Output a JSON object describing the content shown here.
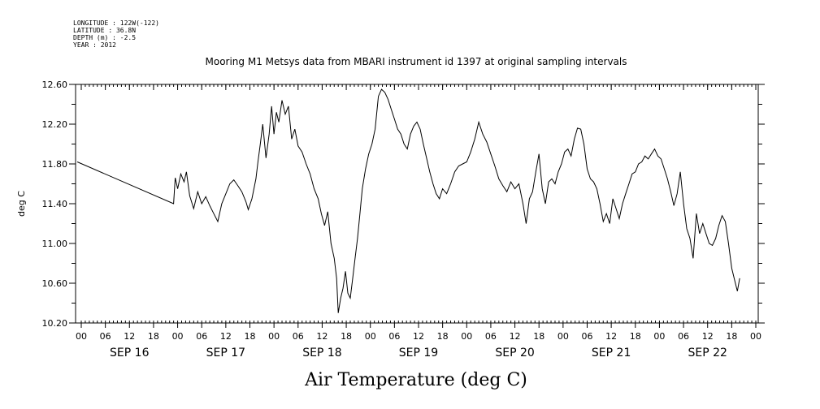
{
  "meta": {
    "longitude": "LONGITUDE : 122W(-122)",
    "latitude": "LATITUDE : 36.8N",
    "depth": "DEPTH (m) : -2.5",
    "year": "YEAR : 2012"
  },
  "chart_data": {
    "type": "line",
    "title": "Mooring M1 Metsys data from MBARI instrument id 1397 at original sampling intervals",
    "xlabel": "Air Temperature (deg C)",
    "ylabel": "deg C",
    "ylim": [
      10.2,
      12.6
    ],
    "yticks": [
      "12.60",
      "12.20",
      "11.80",
      "11.40",
      "11.00",
      "10.60",
      "10.20"
    ],
    "x_unit": "hours since 2012-09-16 00:00",
    "xlim": [
      0,
      168
    ],
    "hour_ticks": [
      "00",
      "06",
      "12",
      "18",
      "00",
      "06",
      "12",
      "18",
      "00",
      "06",
      "12",
      "18",
      "00",
      "06",
      "12",
      "18",
      "00",
      "06",
      "12",
      "18",
      "00",
      "06",
      "12",
      "18",
      "00",
      "06",
      "12",
      "18",
      "00"
    ],
    "day_labels": [
      "SEP 16",
      "SEP 17",
      "SEP 18",
      "SEP 19",
      "SEP 20",
      "SEP 21",
      "SEP 22"
    ],
    "grid": false,
    "series": [
      {
        "values": [
          [
            -1,
            11.82
          ],
          [
            23,
            11.4
          ],
          [
            23.4,
            11.66
          ],
          [
            24,
            11.55
          ],
          [
            24.8,
            11.7
          ],
          [
            25.6,
            11.62
          ],
          [
            26.2,
            11.72
          ],
          [
            27,
            11.48
          ],
          [
            28,
            11.35
          ],
          [
            29,
            11.52
          ],
          [
            30,
            11.4
          ],
          [
            31,
            11.47
          ],
          [
            32,
            11.38
          ],
          [
            33,
            11.3
          ],
          [
            34,
            11.22
          ],
          [
            35,
            11.4
          ],
          [
            36,
            11.5
          ],
          [
            37,
            11.6
          ],
          [
            38,
            11.64
          ],
          [
            39,
            11.58
          ],
          [
            40,
            11.52
          ],
          [
            41,
            11.42
          ],
          [
            41.6,
            11.34
          ],
          [
            42.5,
            11.45
          ],
          [
            43.5,
            11.65
          ],
          [
            44,
            11.82
          ],
          [
            44.6,
            12.0
          ],
          [
            45.2,
            12.2
          ],
          [
            46,
            11.86
          ],
          [
            46.8,
            12.1
          ],
          [
            47.4,
            12.38
          ],
          [
            48,
            12.1
          ],
          [
            48.6,
            12.32
          ],
          [
            49.2,
            12.22
          ],
          [
            50,
            12.44
          ],
          [
            50.8,
            12.3
          ],
          [
            51.6,
            12.38
          ],
          [
            52.4,
            12.05
          ],
          [
            53.2,
            12.15
          ],
          [
            54,
            11.98
          ],
          [
            55,
            11.92
          ],
          [
            56,
            11.8
          ],
          [
            57,
            11.7
          ],
          [
            58,
            11.55
          ],
          [
            59,
            11.45
          ],
          [
            59.8,
            11.3
          ],
          [
            60.6,
            11.18
          ],
          [
            61.4,
            11.32
          ],
          [
            62.2,
            11.0
          ],
          [
            63,
            10.85
          ],
          [
            63.6,
            10.65
          ],
          [
            64,
            10.3
          ],
          [
            64.6,
            10.45
          ],
          [
            65.2,
            10.55
          ],
          [
            65.8,
            10.72
          ],
          [
            66.4,
            10.5
          ],
          [
            67,
            10.45
          ],
          [
            67.6,
            10.65
          ],
          [
            68.2,
            10.85
          ],
          [
            68.8,
            11.05
          ],
          [
            69.4,
            11.3
          ],
          [
            70,
            11.55
          ],
          [
            70.8,
            11.75
          ],
          [
            71.6,
            11.9
          ],
          [
            72.4,
            12.0
          ],
          [
            73.2,
            12.15
          ],
          [
            74,
            12.48
          ],
          [
            74.8,
            12.55
          ],
          [
            75.6,
            12.52
          ],
          [
            76.4,
            12.45
          ],
          [
            77.2,
            12.35
          ],
          [
            78,
            12.25
          ],
          [
            78.8,
            12.15
          ],
          [
            79.6,
            12.1
          ],
          [
            80.4,
            12.0
          ],
          [
            81.2,
            11.95
          ],
          [
            82,
            12.1
          ],
          [
            82.8,
            12.18
          ],
          [
            83.6,
            12.22
          ],
          [
            84.4,
            12.15
          ],
          [
            85.2,
            12.0
          ],
          [
            86,
            11.86
          ],
          [
            86.8,
            11.72
          ],
          [
            87.6,
            11.6
          ],
          [
            88.4,
            11.5
          ],
          [
            89.2,
            11.45
          ],
          [
            90,
            11.55
          ],
          [
            91,
            11.5
          ],
          [
            92,
            11.6
          ],
          [
            93,
            11.72
          ],
          [
            94,
            11.78
          ],
          [
            95,
            11.8
          ],
          [
            96,
            11.82
          ],
          [
            97,
            11.92
          ],
          [
            98,
            12.05
          ],
          [
            99,
            12.22
          ],
          [
            100,
            12.1
          ],
          [
            101,
            12.02
          ],
          [
            102,
            11.9
          ],
          [
            103,
            11.78
          ],
          [
            104,
            11.65
          ],
          [
            105,
            11.58
          ],
          [
            106,
            11.52
          ],
          [
            107,
            11.62
          ],
          [
            108,
            11.55
          ],
          [
            109,
            11.6
          ],
          [
            110,
            11.4
          ],
          [
            110.8,
            11.2
          ],
          [
            111.6,
            11.45
          ],
          [
            112.4,
            11.52
          ],
          [
            113.2,
            11.72
          ],
          [
            114,
            11.9
          ],
          [
            114.8,
            11.55
          ],
          [
            115.6,
            11.4
          ],
          [
            116.4,
            11.62
          ],
          [
            117.2,
            11.65
          ],
          [
            118,
            11.6
          ],
          [
            118.8,
            11.72
          ],
          [
            119.6,
            11.8
          ],
          [
            120.4,
            11.92
          ],
          [
            121.2,
            11.95
          ],
          [
            122,
            11.88
          ],
          [
            122.8,
            12.05
          ],
          [
            123.6,
            12.16
          ],
          [
            124.4,
            12.15
          ],
          [
            125.2,
            12.0
          ],
          [
            126,
            11.75
          ],
          [
            126.8,
            11.65
          ],
          [
            127.6,
            11.62
          ],
          [
            128.4,
            11.55
          ],
          [
            129.2,
            11.4
          ],
          [
            130,
            11.22
          ],
          [
            130.8,
            11.3
          ],
          [
            131.6,
            11.2
          ],
          [
            132.4,
            11.45
          ],
          [
            133.2,
            11.35
          ],
          [
            134,
            11.25
          ],
          [
            134.8,
            11.4
          ],
          [
            135.6,
            11.5
          ],
          [
            136.4,
            11.6
          ],
          [
            137.2,
            11.7
          ],
          [
            138,
            11.72
          ],
          [
            138.8,
            11.8
          ],
          [
            139.6,
            11.82
          ],
          [
            140.4,
            11.88
          ],
          [
            141.2,
            11.85
          ],
          [
            142,
            11.9
          ],
          [
            142.8,
            11.95
          ],
          [
            143.6,
            11.88
          ],
          [
            144.4,
            11.85
          ],
          [
            145.2,
            11.75
          ],
          [
            146,
            11.65
          ],
          [
            146.8,
            11.52
          ],
          [
            147.6,
            11.38
          ],
          [
            148.4,
            11.5
          ],
          [
            149.2,
            11.72
          ],
          [
            150,
            11.4
          ],
          [
            150.8,
            11.15
          ],
          [
            151.6,
            11.05
          ],
          [
            152.4,
            10.85
          ],
          [
            153.2,
            11.3
          ],
          [
            154,
            11.1
          ],
          [
            154.8,
            11.2
          ],
          [
            155.6,
            11.1
          ],
          [
            156.4,
            11.0
          ],
          [
            157.2,
            10.98
          ],
          [
            158,
            11.05
          ],
          [
            158.8,
            11.18
          ],
          [
            159.6,
            11.28
          ],
          [
            160.4,
            11.22
          ],
          [
            161.2,
            11.0
          ],
          [
            162,
            10.75
          ],
          [
            162.8,
            10.62
          ],
          [
            163.4,
            10.52
          ],
          [
            164,
            10.65
          ]
        ]
      }
    ]
  }
}
